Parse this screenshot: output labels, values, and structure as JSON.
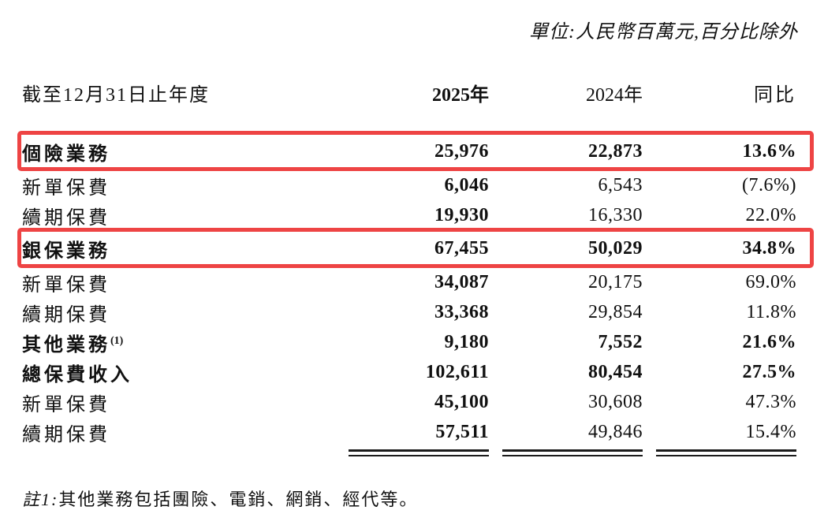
{
  "unit_note": "單位:人民幣百萬元,百分比除外",
  "table": {
    "header": {
      "label": "截至12月31日止年度",
      "col_2025": "2025年",
      "col_2024": "2024年",
      "col_yoy": "同比"
    },
    "rows": [
      {
        "label": "個險業務",
        "v2025": "25,976",
        "v2024": "22,873",
        "yoy": "13.6%",
        "bold": true,
        "highlight": true
      },
      {
        "label": "新單保費",
        "v2025": "6,046",
        "v2024": "6,543",
        "yoy": "(7.6%)",
        "bold": false,
        "highlight": false
      },
      {
        "label": "續期保費",
        "v2025": "19,930",
        "v2024": "16,330",
        "yoy": "22.0%",
        "bold": false,
        "highlight": false
      },
      {
        "label": "銀保業務",
        "v2025": "67,455",
        "v2024": "50,029",
        "yoy": "34.8%",
        "bold": true,
        "highlight": true
      },
      {
        "label": "新單保費",
        "v2025": "34,087",
        "v2024": "20,175",
        "yoy": "69.0%",
        "bold": false,
        "highlight": false
      },
      {
        "label": "續期保費",
        "v2025": "33,368",
        "v2024": "29,854",
        "yoy": "11.8%",
        "bold": false,
        "highlight": false
      },
      {
        "label": "其他業務",
        "label_sup": "(1)",
        "v2025": "9,180",
        "v2024": "7,552",
        "yoy": "21.6%",
        "bold": true,
        "highlight": false
      },
      {
        "label": "總保費收入",
        "v2025": "102,611",
        "v2024": "80,454",
        "yoy": "27.5%",
        "bold": true,
        "highlight": false
      },
      {
        "label": "新單保費",
        "v2025": "45,100",
        "v2024": "30,608",
        "yoy": "47.3%",
        "bold": false,
        "highlight": false
      },
      {
        "label": "續期保費",
        "v2025": "57,511",
        "v2024": "49,846",
        "yoy": "15.4%",
        "bold": false,
        "highlight": false
      }
    ]
  },
  "footnote": {
    "prefix": "註1:",
    "text": "其他業務包括團險、電銷、網銷、經代等。"
  },
  "colors": {
    "highlight_border": "#ee4444",
    "text": "#111111"
  }
}
